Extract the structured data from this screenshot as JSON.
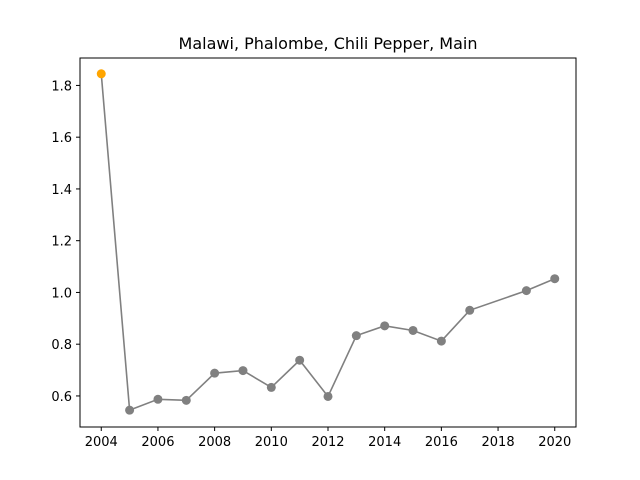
{
  "chart_data": {
    "type": "line",
    "title": "Malawi, Phalombe, Chili Pepper, Main",
    "xlabel": "",
    "ylabel": "",
    "xlim": [
      2003.25,
      2020.75
    ],
    "ylim": [
      0.48,
      1.906
    ],
    "x_ticks": [
      2004,
      2006,
      2008,
      2010,
      2012,
      2014,
      2016,
      2018,
      2020
    ],
    "x_tick_labels": [
      "2004",
      "2006",
      "2008",
      "2010",
      "2012",
      "2014",
      "2016",
      "2018",
      "2020"
    ],
    "y_ticks": [
      0.6,
      0.8,
      1.0,
      1.2,
      1.4,
      1.6,
      1.8
    ],
    "y_tick_labels": [
      "0.6",
      "0.8",
      "1.0",
      "1.2",
      "1.4",
      "1.6",
      "1.8"
    ],
    "grid": false,
    "series": [
      {
        "color": "#808080",
        "marker_color": "#808080",
        "highlight_color": "#ffa500",
        "highlight_index": 0,
        "x": [
          2004,
          2005,
          2006,
          2007,
          2008,
          2009,
          2010,
          2011,
          2012,
          2013,
          2014,
          2015,
          2016,
          2017,
          2019,
          2020
        ],
        "y": [
          1.845,
          0.545,
          0.587,
          0.583,
          0.688,
          0.698,
          0.633,
          0.738,
          0.598,
          0.833,
          0.871,
          0.853,
          0.812,
          0.931,
          1.007,
          1.053
        ]
      }
    ]
  }
}
